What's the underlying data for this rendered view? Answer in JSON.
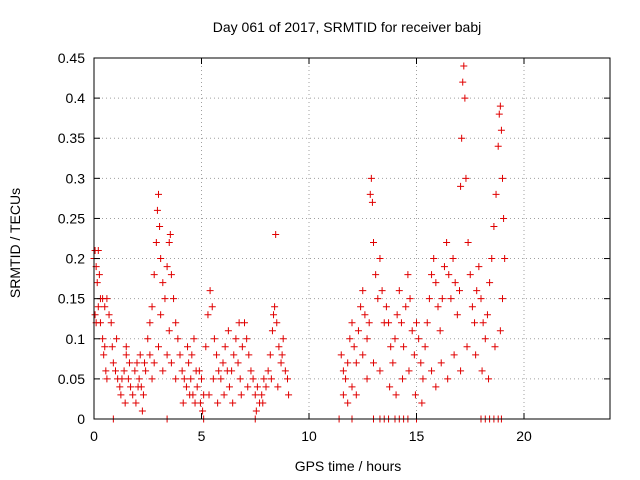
{
  "chart_data": {
    "type": "scatter",
    "title": "Day 061 of 2017, SRMTID for receiver babj",
    "xlabel": "GPS time / hours",
    "ylabel": "SRMTID / TECUs",
    "xlim": [
      0,
      24
    ],
    "ylim": [
      0,
      0.45
    ],
    "xticks": [
      0,
      5,
      10,
      15,
      20
    ],
    "yticks": [
      0,
      0.05,
      0.1,
      0.15,
      0.2,
      0.25,
      0.3,
      0.35,
      0.4,
      0.45
    ],
    "grid": true,
    "marker": "+",
    "colors": {
      "points": "#e00000",
      "grid": "#a0a0a0",
      "axis": "#000000"
    },
    "series": [
      {
        "name": "SRMTID",
        "points": [
          [
            0.0,
            0.2
          ],
          [
            0.05,
            0.21
          ],
          [
            0.1,
            0.19
          ],
          [
            0.15,
            0.17
          ],
          [
            0.2,
            0.21
          ],
          [
            0.25,
            0.18
          ],
          [
            0.3,
            0.15
          ],
          [
            0.05,
            0.13
          ],
          [
            0.1,
            0.12
          ],
          [
            0.2,
            0.14
          ],
          [
            0.3,
            0.12
          ],
          [
            0.4,
            0.1
          ],
          [
            0.45,
            0.08
          ],
          [
            0.5,
            0.09
          ],
          [
            0.55,
            0.06
          ],
          [
            0.6,
            0.05
          ],
          [
            0.4,
            0.15
          ],
          [
            0.5,
            0.14
          ],
          [
            0.6,
            0.15
          ],
          [
            0.7,
            0.13
          ],
          [
            0.8,
            0.12
          ],
          [
            0.85,
            0.09
          ],
          [
            0.9,
            0.07
          ],
          [
            1.0,
            0.06
          ],
          [
            1.1,
            0.05
          ],
          [
            1.2,
            0.04
          ],
          [
            1.3,
            0.05
          ],
          [
            1.4,
            0.06
          ],
          [
            1.5,
            0.08
          ],
          [
            1.6,
            0.05
          ],
          [
            1.7,
            0.04
          ],
          [
            1.8,
            0.03
          ],
          [
            1.9,
            0.06
          ],
          [
            2.0,
            0.07
          ],
          [
            2.1,
            0.05
          ],
          [
            2.2,
            0.04
          ],
          [
            2.3,
            0.03
          ],
          [
            2.4,
            0.06
          ],
          [
            1.25,
            0.03
          ],
          [
            1.45,
            0.02
          ],
          [
            1.65,
            0.07
          ],
          [
            1.95,
            0.02
          ],
          [
            2.15,
            0.08
          ],
          [
            2.35,
            0.07
          ],
          [
            1.05,
            0.1
          ],
          [
            1.5,
            0.09
          ],
          [
            2.05,
            0.04
          ],
          [
            2.25,
            0.01
          ],
          [
            2.5,
            0.1
          ],
          [
            2.6,
            0.12
          ],
          [
            2.7,
            0.14
          ],
          [
            2.8,
            0.18
          ],
          [
            2.9,
            0.22
          ],
          [
            2.95,
            0.26
          ],
          [
            3.0,
            0.28
          ],
          [
            3.05,
            0.24
          ],
          [
            3.1,
            0.2
          ],
          [
            3.2,
            0.17
          ],
          [
            3.3,
            0.15
          ],
          [
            3.4,
            0.19
          ],
          [
            3.5,
            0.22
          ],
          [
            3.55,
            0.23
          ],
          [
            3.6,
            0.18
          ],
          [
            3.7,
            0.15
          ],
          [
            3.8,
            0.12
          ],
          [
            3.9,
            0.1
          ],
          [
            2.6,
            0.08
          ],
          [
            2.8,
            0.07
          ],
          [
            3.0,
            0.09
          ],
          [
            3.2,
            0.06
          ],
          [
            3.4,
            0.08
          ],
          [
            3.6,
            0.07
          ],
          [
            3.8,
            0.05
          ],
          [
            2.7,
            0.05
          ],
          [
            3.1,
            0.13
          ],
          [
            3.5,
            0.11
          ],
          [
            4.0,
            0.08
          ],
          [
            4.1,
            0.06
          ],
          [
            4.2,
            0.05
          ],
          [
            4.3,
            0.04
          ],
          [
            4.4,
            0.07
          ],
          [
            4.5,
            0.05
          ],
          [
            4.6,
            0.03
          ],
          [
            4.7,
            0.02
          ],
          [
            4.8,
            0.04
          ],
          [
            4.9,
            0.06
          ],
          [
            5.0,
            0.05
          ],
          [
            5.1,
            0.03
          ],
          [
            4.15,
            0.02
          ],
          [
            4.35,
            0.09
          ],
          [
            4.55,
            0.08
          ],
          [
            4.75,
            0.06
          ],
          [
            4.95,
            0.02
          ],
          [
            5.05,
            0.01
          ],
          [
            4.45,
            0.03
          ],
          [
            4.65,
            0.1
          ],
          [
            5.2,
            0.09
          ],
          [
            5.3,
            0.13
          ],
          [
            5.4,
            0.16
          ],
          [
            5.5,
            0.14
          ],
          [
            5.6,
            0.1
          ],
          [
            5.7,
            0.08
          ],
          [
            5.8,
            0.06
          ],
          [
            5.9,
            0.05
          ],
          [
            6.0,
            0.07
          ],
          [
            6.1,
            0.09
          ],
          [
            6.2,
            0.06
          ],
          [
            6.3,
            0.04
          ],
          [
            6.4,
            0.06
          ],
          [
            6.5,
            0.08
          ],
          [
            6.6,
            0.1
          ],
          [
            6.7,
            0.07
          ],
          [
            6.8,
            0.05
          ],
          [
            6.9,
            0.09
          ],
          [
            7.0,
            0.12
          ],
          [
            7.1,
            0.1
          ],
          [
            7.2,
            0.08
          ],
          [
            7.3,
            0.06
          ],
          [
            5.35,
            0.03
          ],
          [
            5.75,
            0.02
          ],
          [
            6.05,
            0.03
          ],
          [
            6.45,
            0.02
          ],
          [
            6.85,
            0.03
          ],
          [
            7.15,
            0.04
          ],
          [
            5.55,
            0.05
          ],
          [
            6.25,
            0.11
          ],
          [
            6.75,
            0.12
          ],
          [
            7.4,
            0.05
          ],
          [
            7.5,
            0.03
          ],
          [
            7.6,
            0.04
          ],
          [
            7.7,
            0.02
          ],
          [
            7.8,
            0.03
          ],
          [
            7.9,
            0.05
          ],
          [
            8.0,
            0.04
          ],
          [
            8.1,
            0.06
          ],
          [
            8.2,
            0.08
          ],
          [
            8.3,
            0.11
          ],
          [
            8.35,
            0.13
          ],
          [
            8.4,
            0.14
          ],
          [
            8.45,
            0.23
          ],
          [
            8.5,
            0.12
          ],
          [
            8.6,
            0.09
          ],
          [
            8.7,
            0.07
          ],
          [
            8.8,
            0.1
          ],
          [
            8.9,
            0.06
          ],
          [
            9.0,
            0.05
          ],
          [
            9.05,
            0.03
          ],
          [
            7.55,
            0.01
          ],
          [
            7.85,
            0.02
          ],
          [
            8.25,
            0.05
          ],
          [
            8.55,
            0.04
          ],
          [
            8.75,
            0.08
          ],
          [
            11.5,
            0.08
          ],
          [
            11.6,
            0.06
          ],
          [
            11.7,
            0.05
          ],
          [
            11.8,
            0.07
          ],
          [
            11.9,
            0.1
          ],
          [
            12.0,
            0.12
          ],
          [
            12.1,
            0.09
          ],
          [
            12.2,
            0.07
          ],
          [
            12.3,
            0.11
          ],
          [
            12.4,
            0.14
          ],
          [
            12.5,
            0.16
          ],
          [
            12.6,
            0.13
          ],
          [
            12.7,
            0.1
          ],
          [
            12.8,
            0.12
          ],
          [
            12.85,
            0.28
          ],
          [
            12.9,
            0.3
          ],
          [
            12.95,
            0.27
          ],
          [
            13.0,
            0.22
          ],
          [
            13.1,
            0.18
          ],
          [
            13.2,
            0.15
          ],
          [
            13.3,
            0.2
          ],
          [
            13.4,
            0.16
          ],
          [
            13.5,
            0.12
          ],
          [
            11.6,
            0.03
          ],
          [
            11.8,
            0.02
          ],
          [
            12.0,
            0.04
          ],
          [
            12.2,
            0.03
          ],
          [
            12.5,
            0.08
          ],
          [
            12.7,
            0.05
          ],
          [
            13.0,
            0.07
          ],
          [
            13.3,
            0.06
          ],
          [
            13.6,
            0.14
          ],
          [
            13.7,
            0.12
          ],
          [
            13.8,
            0.09
          ],
          [
            13.9,
            0.07
          ],
          [
            14.0,
            0.1
          ],
          [
            14.1,
            0.13
          ],
          [
            14.2,
            0.16
          ],
          [
            14.3,
            0.12
          ],
          [
            14.4,
            0.09
          ],
          [
            14.5,
            0.14
          ],
          [
            14.6,
            0.18
          ],
          [
            14.7,
            0.15
          ],
          [
            14.8,
            0.11
          ],
          [
            14.9,
            0.08
          ],
          [
            15.0,
            0.12
          ],
          [
            15.1,
            0.1
          ],
          [
            15.2,
            0.07
          ],
          [
            15.3,
            0.05
          ],
          [
            15.4,
            0.09
          ],
          [
            13.75,
            0.04
          ],
          [
            14.05,
            0.03
          ],
          [
            14.35,
            0.05
          ],
          [
            14.65,
            0.06
          ],
          [
            14.95,
            0.03
          ],
          [
            15.25,
            0.02
          ],
          [
            15.5,
            0.12
          ],
          [
            15.6,
            0.15
          ],
          [
            15.7,
            0.18
          ],
          [
            15.8,
            0.2
          ],
          [
            15.9,
            0.17
          ],
          [
            16.0,
            0.14
          ],
          [
            16.1,
            0.11
          ],
          [
            16.2,
            0.15
          ],
          [
            16.3,
            0.19
          ],
          [
            16.4,
            0.22
          ],
          [
            16.5,
            0.18
          ],
          [
            16.6,
            0.15
          ],
          [
            16.7,
            0.2
          ],
          [
            16.8,
            0.17
          ],
          [
            16.9,
            0.13
          ],
          [
            17.0,
            0.16
          ],
          [
            17.05,
            0.29
          ],
          [
            17.1,
            0.35
          ],
          [
            17.15,
            0.42
          ],
          [
            17.2,
            0.44
          ],
          [
            17.25,
            0.4
          ],
          [
            17.3,
            0.3
          ],
          [
            17.4,
            0.22
          ],
          [
            17.5,
            0.18
          ],
          [
            15.7,
            0.06
          ],
          [
            15.9,
            0.04
          ],
          [
            16.15,
            0.07
          ],
          [
            16.45,
            0.05
          ],
          [
            16.75,
            0.08
          ],
          [
            17.05,
            0.06
          ],
          [
            17.35,
            0.09
          ],
          [
            17.6,
            0.14
          ],
          [
            17.7,
            0.12
          ],
          [
            17.8,
            0.16
          ],
          [
            17.9,
            0.19
          ],
          [
            18.0,
            0.15
          ],
          [
            18.1,
            0.12
          ],
          [
            18.2,
            0.1
          ],
          [
            18.3,
            0.13
          ],
          [
            18.4,
            0.17
          ],
          [
            18.5,
            0.2
          ],
          [
            18.6,
            0.24
          ],
          [
            18.7,
            0.28
          ],
          [
            18.8,
            0.34
          ],
          [
            18.85,
            0.38
          ],
          [
            18.9,
            0.39
          ],
          [
            18.95,
            0.36
          ],
          [
            19.0,
            0.3
          ],
          [
            19.05,
            0.25
          ],
          [
            19.1,
            0.2
          ],
          [
            17.75,
            0.08
          ],
          [
            18.05,
            0.06
          ],
          [
            18.35,
            0.05
          ],
          [
            18.65,
            0.09
          ],
          [
            18.9,
            0.11
          ],
          [
            19.0,
            0.15
          ],
          [
            0.9,
            0.0
          ],
          [
            3.4,
            0.0
          ],
          [
            5.1,
            0.0
          ],
          [
            7.5,
            0.0
          ],
          [
            11.4,
            0.0
          ],
          [
            12.0,
            0.0
          ],
          [
            13.0,
            0.0
          ],
          [
            13.3,
            0.0
          ],
          [
            13.5,
            0.0
          ],
          [
            13.7,
            0.0
          ],
          [
            14.0,
            0.0
          ],
          [
            14.2,
            0.0
          ],
          [
            14.4,
            0.0
          ],
          [
            14.6,
            0.0
          ],
          [
            15.0,
            0.0
          ],
          [
            18.0,
            0.0
          ],
          [
            18.2,
            0.0
          ],
          [
            18.4,
            0.0
          ],
          [
            18.6,
            0.0
          ],
          [
            18.8,
            0.0
          ],
          [
            18.95,
            0.0
          ]
        ]
      }
    ]
  }
}
